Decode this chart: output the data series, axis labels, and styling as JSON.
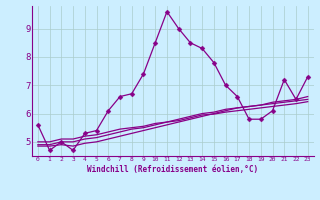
{
  "xlabel": "Windchill (Refroidissement éolien,°C)",
  "ylabel": "",
  "bg_color": "#cceeff",
  "line_color": "#880088",
  "grid_color": "#aacccc",
  "xlim": [
    -0.5,
    23.5
  ],
  "ylim": [
    4.5,
    9.8
  ],
  "xticks": [
    0,
    1,
    2,
    3,
    4,
    5,
    6,
    7,
    8,
    9,
    10,
    11,
    12,
    13,
    14,
    15,
    16,
    17,
    18,
    19,
    20,
    21,
    22,
    23
  ],
  "yticks": [
    5,
    6,
    7,
    8,
    9
  ],
  "series": [
    [
      5.6,
      4.7,
      5.0,
      4.7,
      5.3,
      5.4,
      6.1,
      6.6,
      6.7,
      7.4,
      8.5,
      9.6,
      9.0,
      8.5,
      8.3,
      7.8,
      7.0,
      6.6,
      5.8,
      5.8,
      6.1,
      7.2,
      6.5,
      7.3
    ],
    [
      4.85,
      4.85,
      4.9,
      4.85,
      4.95,
      5.0,
      5.1,
      5.2,
      5.3,
      5.4,
      5.5,
      5.6,
      5.7,
      5.8,
      5.9,
      6.0,
      6.1,
      6.2,
      6.25,
      6.3,
      6.4,
      6.45,
      6.5,
      6.6
    ],
    [
      4.9,
      4.9,
      5.0,
      5.0,
      5.1,
      5.15,
      5.25,
      5.35,
      5.45,
      5.5,
      5.6,
      5.7,
      5.8,
      5.9,
      6.0,
      6.05,
      6.15,
      6.2,
      6.25,
      6.3,
      6.35,
      6.4,
      6.45,
      6.5
    ],
    [
      5.0,
      5.0,
      5.1,
      5.1,
      5.2,
      5.25,
      5.35,
      5.45,
      5.5,
      5.55,
      5.65,
      5.7,
      5.75,
      5.85,
      5.95,
      5.98,
      6.05,
      6.1,
      6.15,
      6.2,
      6.25,
      6.3,
      6.35,
      6.42
    ]
  ],
  "marker_series": 0,
  "marker": "D",
  "marker_size": 2.5,
  "line_width": 0.9
}
